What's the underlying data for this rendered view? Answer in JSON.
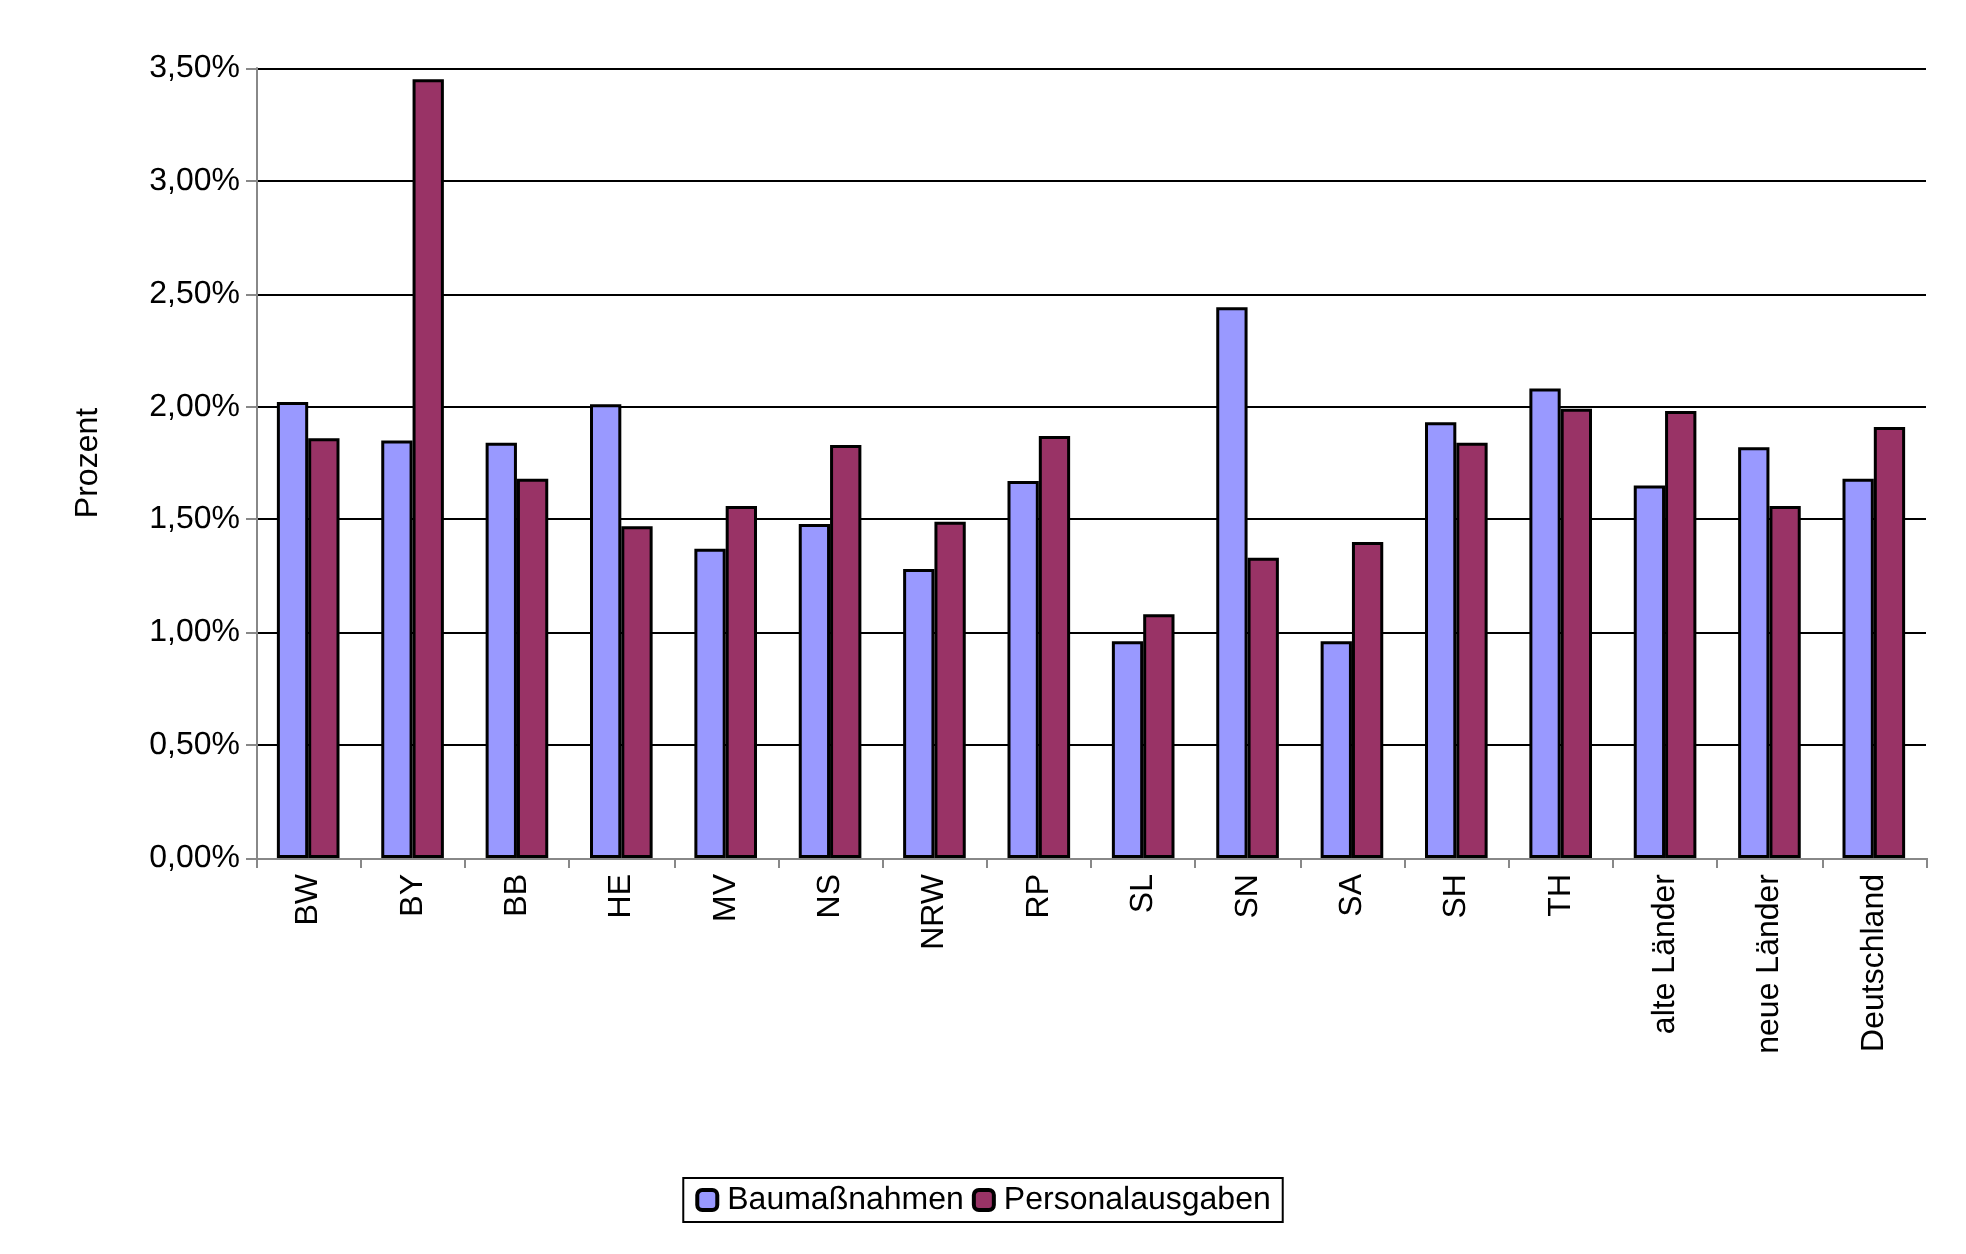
{
  "chart_data": {
    "type": "bar",
    "ylabel": "Prozent",
    "categories": [
      "BW",
      "BY",
      "BB",
      "HE",
      "MV",
      "NS",
      "NRW",
      "RP",
      "SL",
      "SN",
      "SA",
      "SH",
      "TH",
      "alte Länder",
      "neue Länder",
      "Deutschland"
    ],
    "series": [
      {
        "name": "Baumaßnahmen",
        "color": "#9999ff",
        "values": [
          2.02,
          1.85,
          1.84,
          2.01,
          1.37,
          1.48,
          1.28,
          1.67,
          0.96,
          2.44,
          0.96,
          1.93,
          2.08,
          1.65,
          1.82,
          1.68
        ]
      },
      {
        "name": "Personalausgaben",
        "color": "#993366",
        "values": [
          1.86,
          3.45,
          1.68,
          1.47,
          1.56,
          1.83,
          1.49,
          1.87,
          1.08,
          1.33,
          1.4,
          1.84,
          1.99,
          1.98,
          1.56,
          1.91
        ]
      }
    ],
    "ylim": [
      0,
      3.5
    ],
    "yticks": [
      {
        "value": 0,
        "label": "0,00%"
      },
      {
        "value": 0.5,
        "label": "0,50%"
      },
      {
        "value": 1,
        "label": "1,00%"
      },
      {
        "value": 1.5,
        "label": "1,50%"
      },
      {
        "value": 2,
        "label": "2,00%"
      },
      {
        "value": 2.5,
        "label": "2,50%"
      },
      {
        "value": 3,
        "label": "3,00%"
      },
      {
        "value": 3.5,
        "label": "3,50%"
      }
    ],
    "grid": "y",
    "legend": "bottom"
  }
}
